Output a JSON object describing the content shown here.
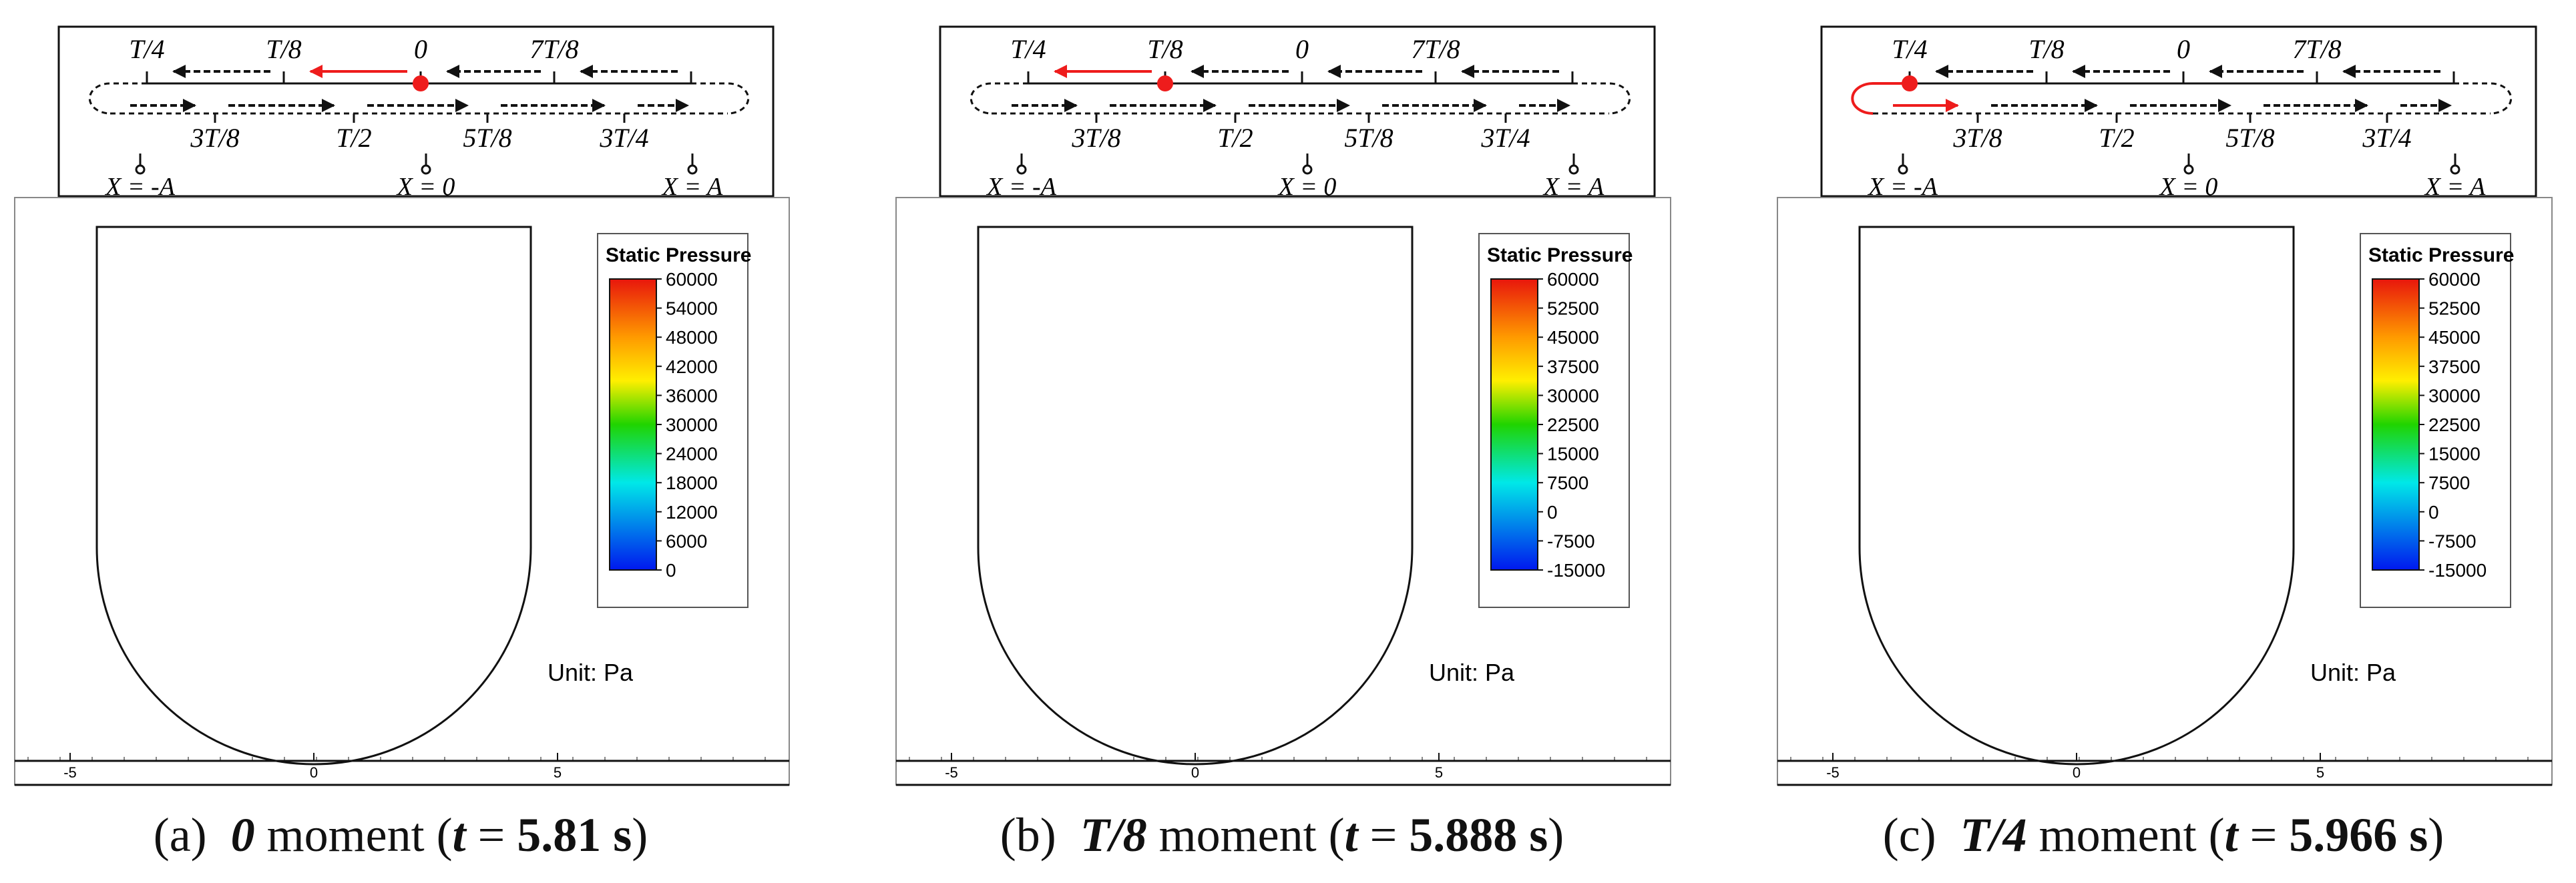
{
  "colors": {
    "highlight": "#ee1c1c",
    "line": "#111111",
    "red": "#e8160c",
    "orange": "#ff9a00",
    "yellow": "#ffef00",
    "green": "#20d400",
    "cyan": "#00e8e8",
    "blue": "#0018ee"
  },
  "panels": [
    {
      "id": "a",
      "marker_labels": {
        "top": [
          "T/4",
          "T/8",
          "0",
          "7T/8"
        ],
        "bottom": [
          "3T/8",
          "T/2",
          "5T/8",
          "3T/4"
        ],
        "positions": [
          "X = -A",
          "X = 0",
          "X = A"
        ]
      },
      "legend": {
        "title": "Static Pressure",
        "levels": [
          "60000",
          "54000",
          "48000",
          "42000",
          "36000",
          "30000",
          "24000",
          "18000",
          "12000",
          "6000",
          "0"
        ]
      },
      "unit": "Unit: Pa",
      "axis_ticks": [
        "-5",
        "0",
        "5"
      ],
      "caption": {
        "letter": "(a)",
        "moment": "0",
        "word": "moment",
        "t_value": "5.81",
        "t_unit": "s"
      }
    },
    {
      "id": "b",
      "marker_labels": {
        "top": [
          "T/4",
          "T/8",
          "0",
          "7T/8"
        ],
        "bottom": [
          "3T/8",
          "T/2",
          "5T/8",
          "3T/4"
        ],
        "positions": [
          "X = -A",
          "X = 0",
          "X = A"
        ]
      },
      "legend": {
        "title": "Static Pressure",
        "levels": [
          "60000",
          "52500",
          "45000",
          "37500",
          "30000",
          "22500",
          "15000",
          "7500",
          "0",
          "-7500",
          "-15000"
        ]
      },
      "unit": "Unit: Pa",
      "axis_ticks": [
        "-5",
        "0",
        "5"
      ],
      "caption": {
        "letter": "(b)",
        "moment": "T/8",
        "word": "moment",
        "t_value": "5.888",
        "t_unit": "s"
      }
    },
    {
      "id": "c",
      "marker_labels": {
        "top": [
          "T/4",
          "T/8",
          "0",
          "7T/8"
        ],
        "bottom": [
          "3T/8",
          "T/2",
          "5T/8",
          "3T/4"
        ],
        "positions": [
          "X = -A",
          "X = 0",
          "X = A"
        ]
      },
      "legend": {
        "title": "Static Pressure",
        "levels": [
          "60000",
          "52500",
          "45000",
          "37500",
          "30000",
          "22500",
          "15000",
          "7500",
          "0",
          "-7500",
          "-15000"
        ]
      },
      "unit": "Unit: Pa",
      "axis_ticks": [
        "-5",
        "0",
        "5"
      ],
      "caption": {
        "letter": "(c)",
        "moment": "T/4",
        "word": "moment",
        "t_value": "5.966",
        "t_unit": "s"
      }
    }
  ]
}
